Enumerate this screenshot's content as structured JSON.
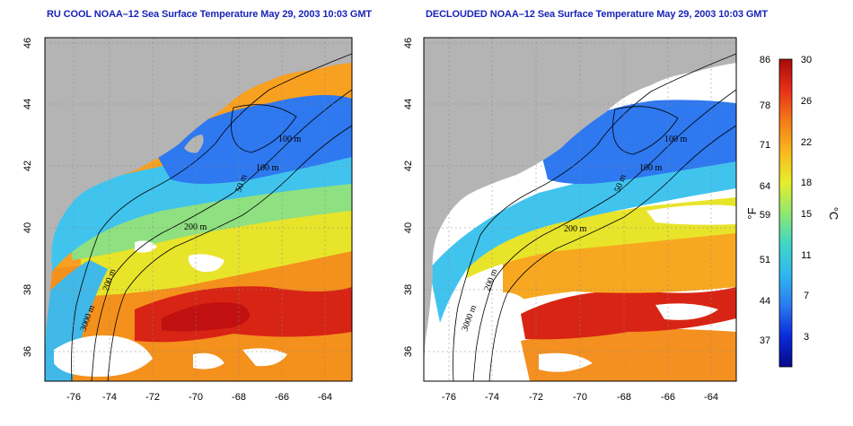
{
  "panels": [
    {
      "id": "left",
      "title": "RU COOL NOAA–12 Sea Surface Temperature May 29, 2003 10:03 GMT",
      "variant": "raw"
    },
    {
      "id": "right",
      "title": "DECLOUDED NOAA–12 Sea Surface Temperature May 29, 2003 10:03 GMT",
      "variant": "declouded"
    }
  ],
  "axes": {
    "x_ticks": [
      "-76",
      "-74",
      "-72",
      "-70",
      "-68",
      "-66",
      "-64"
    ],
    "y_ticks": [
      "46",
      "44",
      "42",
      "40",
      "38",
      "36"
    ]
  },
  "contour_labels": [
    "100 m",
    "100 m",
    "50 m",
    "200 m",
    "200 m",
    "3000 m"
  ],
  "colorbar": {
    "fahrenheit_label": "°F",
    "celsius_label": "°C",
    "fahrenheit_ticks": [
      "86",
      "78",
      "71",
      "64",
      "59",
      "51",
      "44",
      "37"
    ],
    "celsius_ticks": [
      "30",
      "26",
      "22",
      "18",
      "15",
      "11",
      "7",
      "3"
    ],
    "range_c": [
      0,
      30
    ],
    "colors": [
      "#08088a",
      "#0a2bdc",
      "#2a7bf0",
      "#2fb8f0",
      "#3fd6c6",
      "#8fe870",
      "#e6ee2a",
      "#f8b81e",
      "#f47a18",
      "#e83018",
      "#a80a0a"
    ]
  },
  "map_colors": {
    "land": "#b4b4b4",
    "cloud": "#ffffff",
    "cold": "#2e7cf0",
    "cool": "#44c8ee",
    "mid": "#8fe080",
    "warm": "#e6e830",
    "warmer": "#f8a020",
    "hot": "#e03a18",
    "hottest": "#c81010"
  }
}
